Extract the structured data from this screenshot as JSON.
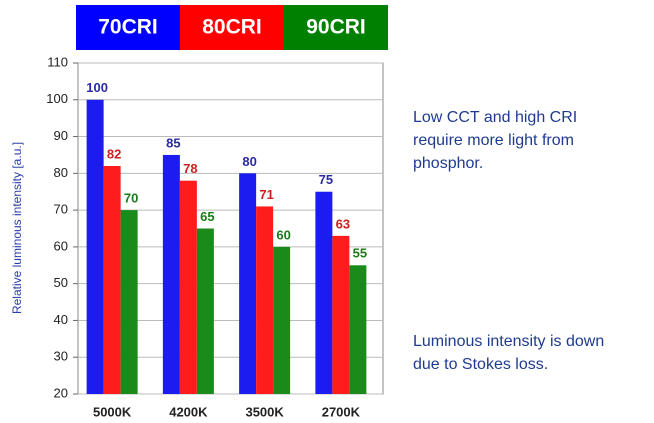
{
  "chart_data": {
    "type": "bar",
    "y_label": "Relative luminous intensity [a.u.]",
    "categories": [
      "5000K",
      "4200K",
      "3500K",
      "2700K"
    ],
    "series": [
      {
        "name": "70CRI",
        "color": "#1c1cf0",
        "legend_color": "#0000ff",
        "label_color": "#2a2aa0",
        "values": [
          100,
          85,
          80,
          75
        ]
      },
      {
        "name": "80CRI",
        "color": "#ff1c1c",
        "legend_color": "#ff0000",
        "label_color": "#cc2020",
        "values": [
          82,
          78,
          71,
          63
        ]
      },
      {
        "name": "90CRI",
        "color": "#1a8a1a",
        "legend_color": "#008000",
        "label_color": "#1a7a1a",
        "values": [
          70,
          65,
          60,
          55
        ]
      }
    ],
    "ylim": [
      20,
      110
    ],
    "yticks": [
      20,
      30,
      40,
      50,
      60,
      70,
      80,
      90,
      100,
      110
    ],
    "grid": true,
    "annotations": [
      {
        "lines": [
          "Low CCT and high CRI",
          "require more light from",
          "phosphor."
        ]
      },
      {
        "lines": [
          "Luminous intensity is  down",
          "due to Stokes loss."
        ]
      }
    ]
  }
}
